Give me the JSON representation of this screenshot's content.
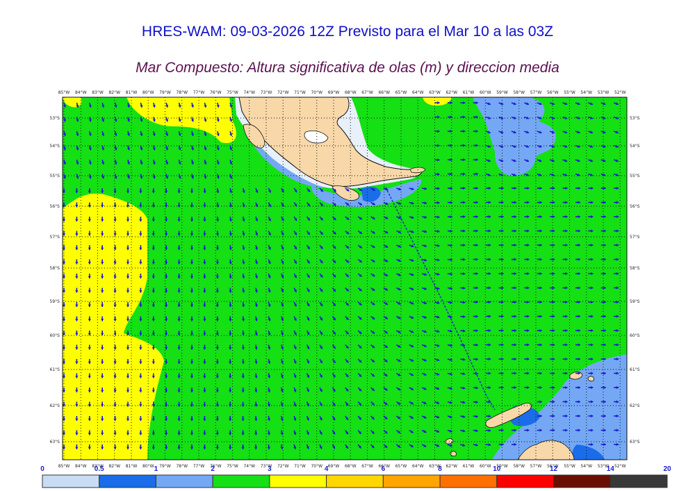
{
  "title": "HRES-WAM: 09-03-2026 12Z Previsto para el Mar 10 a las 03Z",
  "subtitle": "Mar Compuesto: Altura significativa de olas (m) y direccion media",
  "colors": {
    "land": "#f8d8a8",
    "arrow": "#1a1ad0",
    "track": "#2030c0",
    "grid": "#111111"
  },
  "map": {
    "lon_labels": [
      "85°W",
      "84°W",
      "83°W",
      "82°W",
      "81°W",
      "80°W",
      "79°W",
      "78°W",
      "77°W",
      "76°W",
      "75°W",
      "74°W",
      "73°W",
      "72°W",
      "71°W",
      "70°W",
      "69°W",
      "68°W",
      "67°W",
      "66°W",
      "65°W",
      "64°W",
      "63°W",
      "62°W",
      "61°W",
      "60°W",
      "59°W",
      "58°W",
      "57°W",
      "56°W",
      "55°W",
      "54°W",
      "53°W",
      "52°W"
    ],
    "lat_labels": [
      "53°S",
      "54°S",
      "55°S",
      "56°S",
      "57°S",
      "58°S",
      "59°S",
      "60°S",
      "61°S",
      "62°S",
      "63°S"
    ]
  },
  "legend": {
    "bins": [
      {
        "color": "#c8dcf4"
      },
      {
        "color": "#1a6ce8"
      },
      {
        "color": "#74a8f4"
      },
      {
        "color": "#14e014"
      },
      {
        "color": "#ffff00"
      },
      {
        "color": "#ffd700"
      },
      {
        "color": "#ffa500"
      },
      {
        "color": "#ff7000"
      },
      {
        "color": "#ff0000"
      },
      {
        "color": "#6a0e00"
      },
      {
        "color": "#383838"
      }
    ],
    "labels": [
      "0",
      "0.5",
      "1",
      "2",
      "3",
      "4",
      "6",
      "8",
      "10",
      "12",
      "14",
      "20"
    ]
  }
}
